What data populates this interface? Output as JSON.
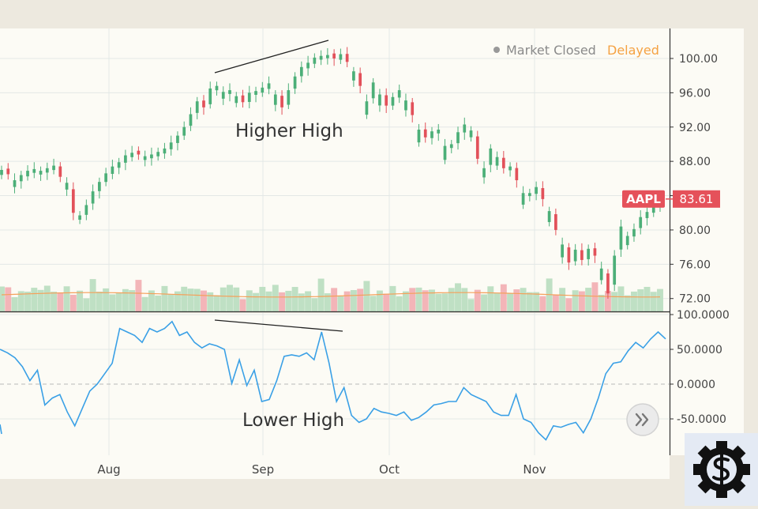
{
  "status": {
    "market": "Market Closed",
    "delayed": "Delayed",
    "dot_color": "#999999",
    "market_color": "#8a8a8a",
    "delayed_color": "#f5a243"
  },
  "symbol": {
    "label": "AAPL",
    "last_price": "83.61",
    "color": "#e5515a"
  },
  "annotations": {
    "upper": "Higher High",
    "lower": "Lower High"
  },
  "scroll_button": {
    "icon": "double-chevron-right-icon"
  },
  "logo": {
    "icon": "gear-dollar-icon",
    "background": "#e4eaf4"
  },
  "colors": {
    "up": "#4caf78",
    "down": "#e2515a",
    "up_volume": "#bfe0c4",
    "down_volume": "#f3b5b8",
    "volume_ma": "#f5a05a",
    "oscillator": "#3aa0e6",
    "background": "#fcfbf5",
    "grid": "#e3e8e6",
    "frame": "#ede9df"
  },
  "chart_data": [
    {
      "type": "candlestick",
      "name": "AAPL daily price",
      "ylim": [
        70.5,
        103.5
      ],
      "y_ticks": [
        "100.00",
        "96.00",
        "92.00",
        "88.00",
        "84.00",
        "80.00",
        "76.00",
        "72.00"
      ],
      "x_ticks": [
        "Aug",
        "Sep",
        "Oct",
        "Nov"
      ],
      "last_value": 83.61,
      "grid": true,
      "close": [
        87.0,
        86.5,
        85.8,
        86.4,
        86.9,
        87.1,
        86.9,
        87.2,
        87.5,
        86.2,
        85.5,
        82.0,
        81.7,
        82.9,
        84.5,
        85.6,
        86.6,
        87.4,
        87.9,
        88.7,
        89.0,
        88.8,
        88.6,
        88.8,
        89.1,
        89.5,
        90.2,
        91.0,
        92.0,
        93.5,
        95.0,
        94.3,
        96.5,
        96.8,
        96.1,
        96.3,
        95.6,
        94.9,
        96.0,
        96.2,
        96.6,
        97.1,
        95.8,
        94.3,
        96.3,
        97.9,
        99.0,
        99.5,
        100.1,
        100.3,
        100.4,
        100.0,
        100.5,
        99.6,
        98.5,
        96.8,
        95.0,
        97.2,
        95.8,
        94.5,
        95.5,
        96.3,
        95.1,
        93.4,
        91.7,
        90.8,
        91.5,
        91.7,
        89.8,
        90.0,
        91.4,
        92.3,
        91.6,
        88.3,
        87.2,
        89.5,
        88.5,
        87.2,
        87.4,
        85.8,
        84.3,
        84.3,
        85.0,
        83.6,
        82.2,
        80.0,
        78.3,
        76.2,
        77.7,
        76.5,
        77.8,
        77.0,
        75.5,
        72.6,
        77.0,
        80.4,
        79.3,
        80.1,
        81.5,
        82.1,
        82.8,
        83.6
      ],
      "volume_ma_level": "approx. 30% of volume pane height"
    },
    {
      "type": "line",
      "name": "Oscillator",
      "ylim": [
        -100,
        100
      ],
      "y_ticks": [
        "100.0000",
        "50.0000",
        "0.0000",
        "-50.0000"
      ],
      "zero_line": "dashed",
      "grid": true,
      "values": [
        50,
        45,
        38,
        25,
        5,
        20,
        -30,
        -20,
        -15,
        -40,
        -60,
        -35,
        -10,
        0,
        15,
        30,
        80,
        75,
        70,
        60,
        80,
        75,
        80,
        90,
        70,
        75,
        60,
        52,
        58,
        55,
        50,
        1,
        35,
        -2,
        20,
        -25,
        -22,
        5,
        40,
        42,
        40,
        45,
        35,
        75,
        30,
        -25,
        -5,
        -45,
        -55,
        -50,
        -35,
        -40,
        -42,
        -45,
        -40,
        -52,
        -48,
        -40,
        -30,
        -28,
        -25,
        -25,
        -5,
        -15,
        -20,
        -25,
        -40,
        -45,
        -45,
        -15,
        -50,
        -55,
        -70,
        -80,
        -60,
        -62,
        -58,
        -55,
        -70,
        -50,
        -20,
        15,
        30,
        32,
        48,
        60,
        52,
        65,
        75,
        65
      ]
    }
  ]
}
